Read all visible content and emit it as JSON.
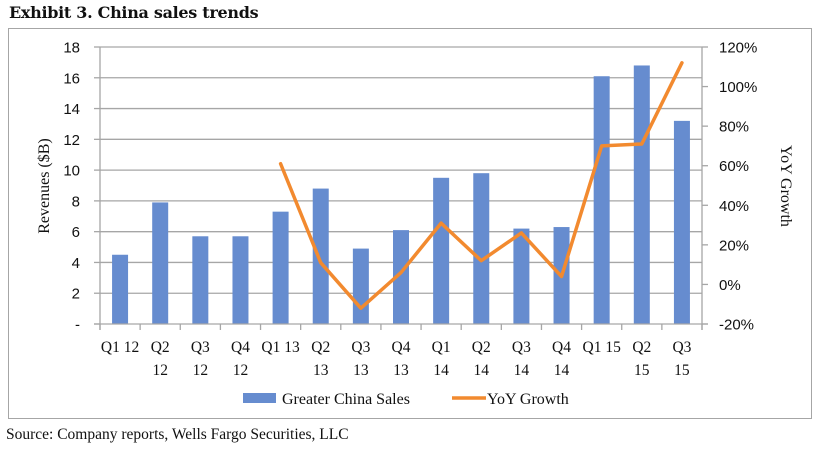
{
  "title": "Exhibit 3. China sales trends",
  "source": "Source: Company reports, Wells Fargo Securities, LLC",
  "chart_data": {
    "type": "bar",
    "categories": [
      [
        "Q1 12"
      ],
      [
        "Q2",
        "12"
      ],
      [
        "Q3",
        "12"
      ],
      [
        "Q4",
        "12"
      ],
      [
        "Q1 13"
      ],
      [
        "Q2",
        "13"
      ],
      [
        "Q3",
        "13"
      ],
      [
        "Q4",
        "13"
      ],
      [
        "Q1",
        "14"
      ],
      [
        "Q2",
        "14"
      ],
      [
        "Q3",
        "14"
      ],
      [
        "Q4",
        "14"
      ],
      [
        "Q1 15"
      ],
      [
        "Q2",
        "15"
      ],
      [
        "Q3",
        "15"
      ]
    ],
    "series": [
      {
        "name": "Greater China Sales",
        "type": "bar",
        "axis": "left",
        "color": "#668ccf",
        "values": [
          4.5,
          7.9,
          5.7,
          5.7,
          7.3,
          8.8,
          4.9,
          6.1,
          9.5,
          9.8,
          6.2,
          6.3,
          16.1,
          16.8,
          13.2
        ]
      },
      {
        "name": "YoY Growth",
        "type": "line",
        "axis": "right",
        "color": "#f28a2f",
        "values": [
          null,
          null,
          null,
          null,
          0.61,
          0.11,
          -0.12,
          0.06,
          0.31,
          0.12,
          0.26,
          0.04,
          0.7,
          0.71,
          1.12
        ]
      }
    ],
    "ylabel": "Revenues ($B)",
    "ylim": [
      0,
      18
    ],
    "yticks": [
      "-",
      "2",
      "4",
      "6",
      "8",
      "10",
      "12",
      "14",
      "16",
      "18"
    ],
    "y2label": "YoY Growth",
    "y2lim": [
      -0.2,
      1.2
    ],
    "y2ticks": [
      "-20%",
      "0%",
      "20%",
      "40%",
      "60%",
      "80%",
      "100%",
      "120%"
    ],
    "grid": true,
    "legend": "bottom"
  }
}
